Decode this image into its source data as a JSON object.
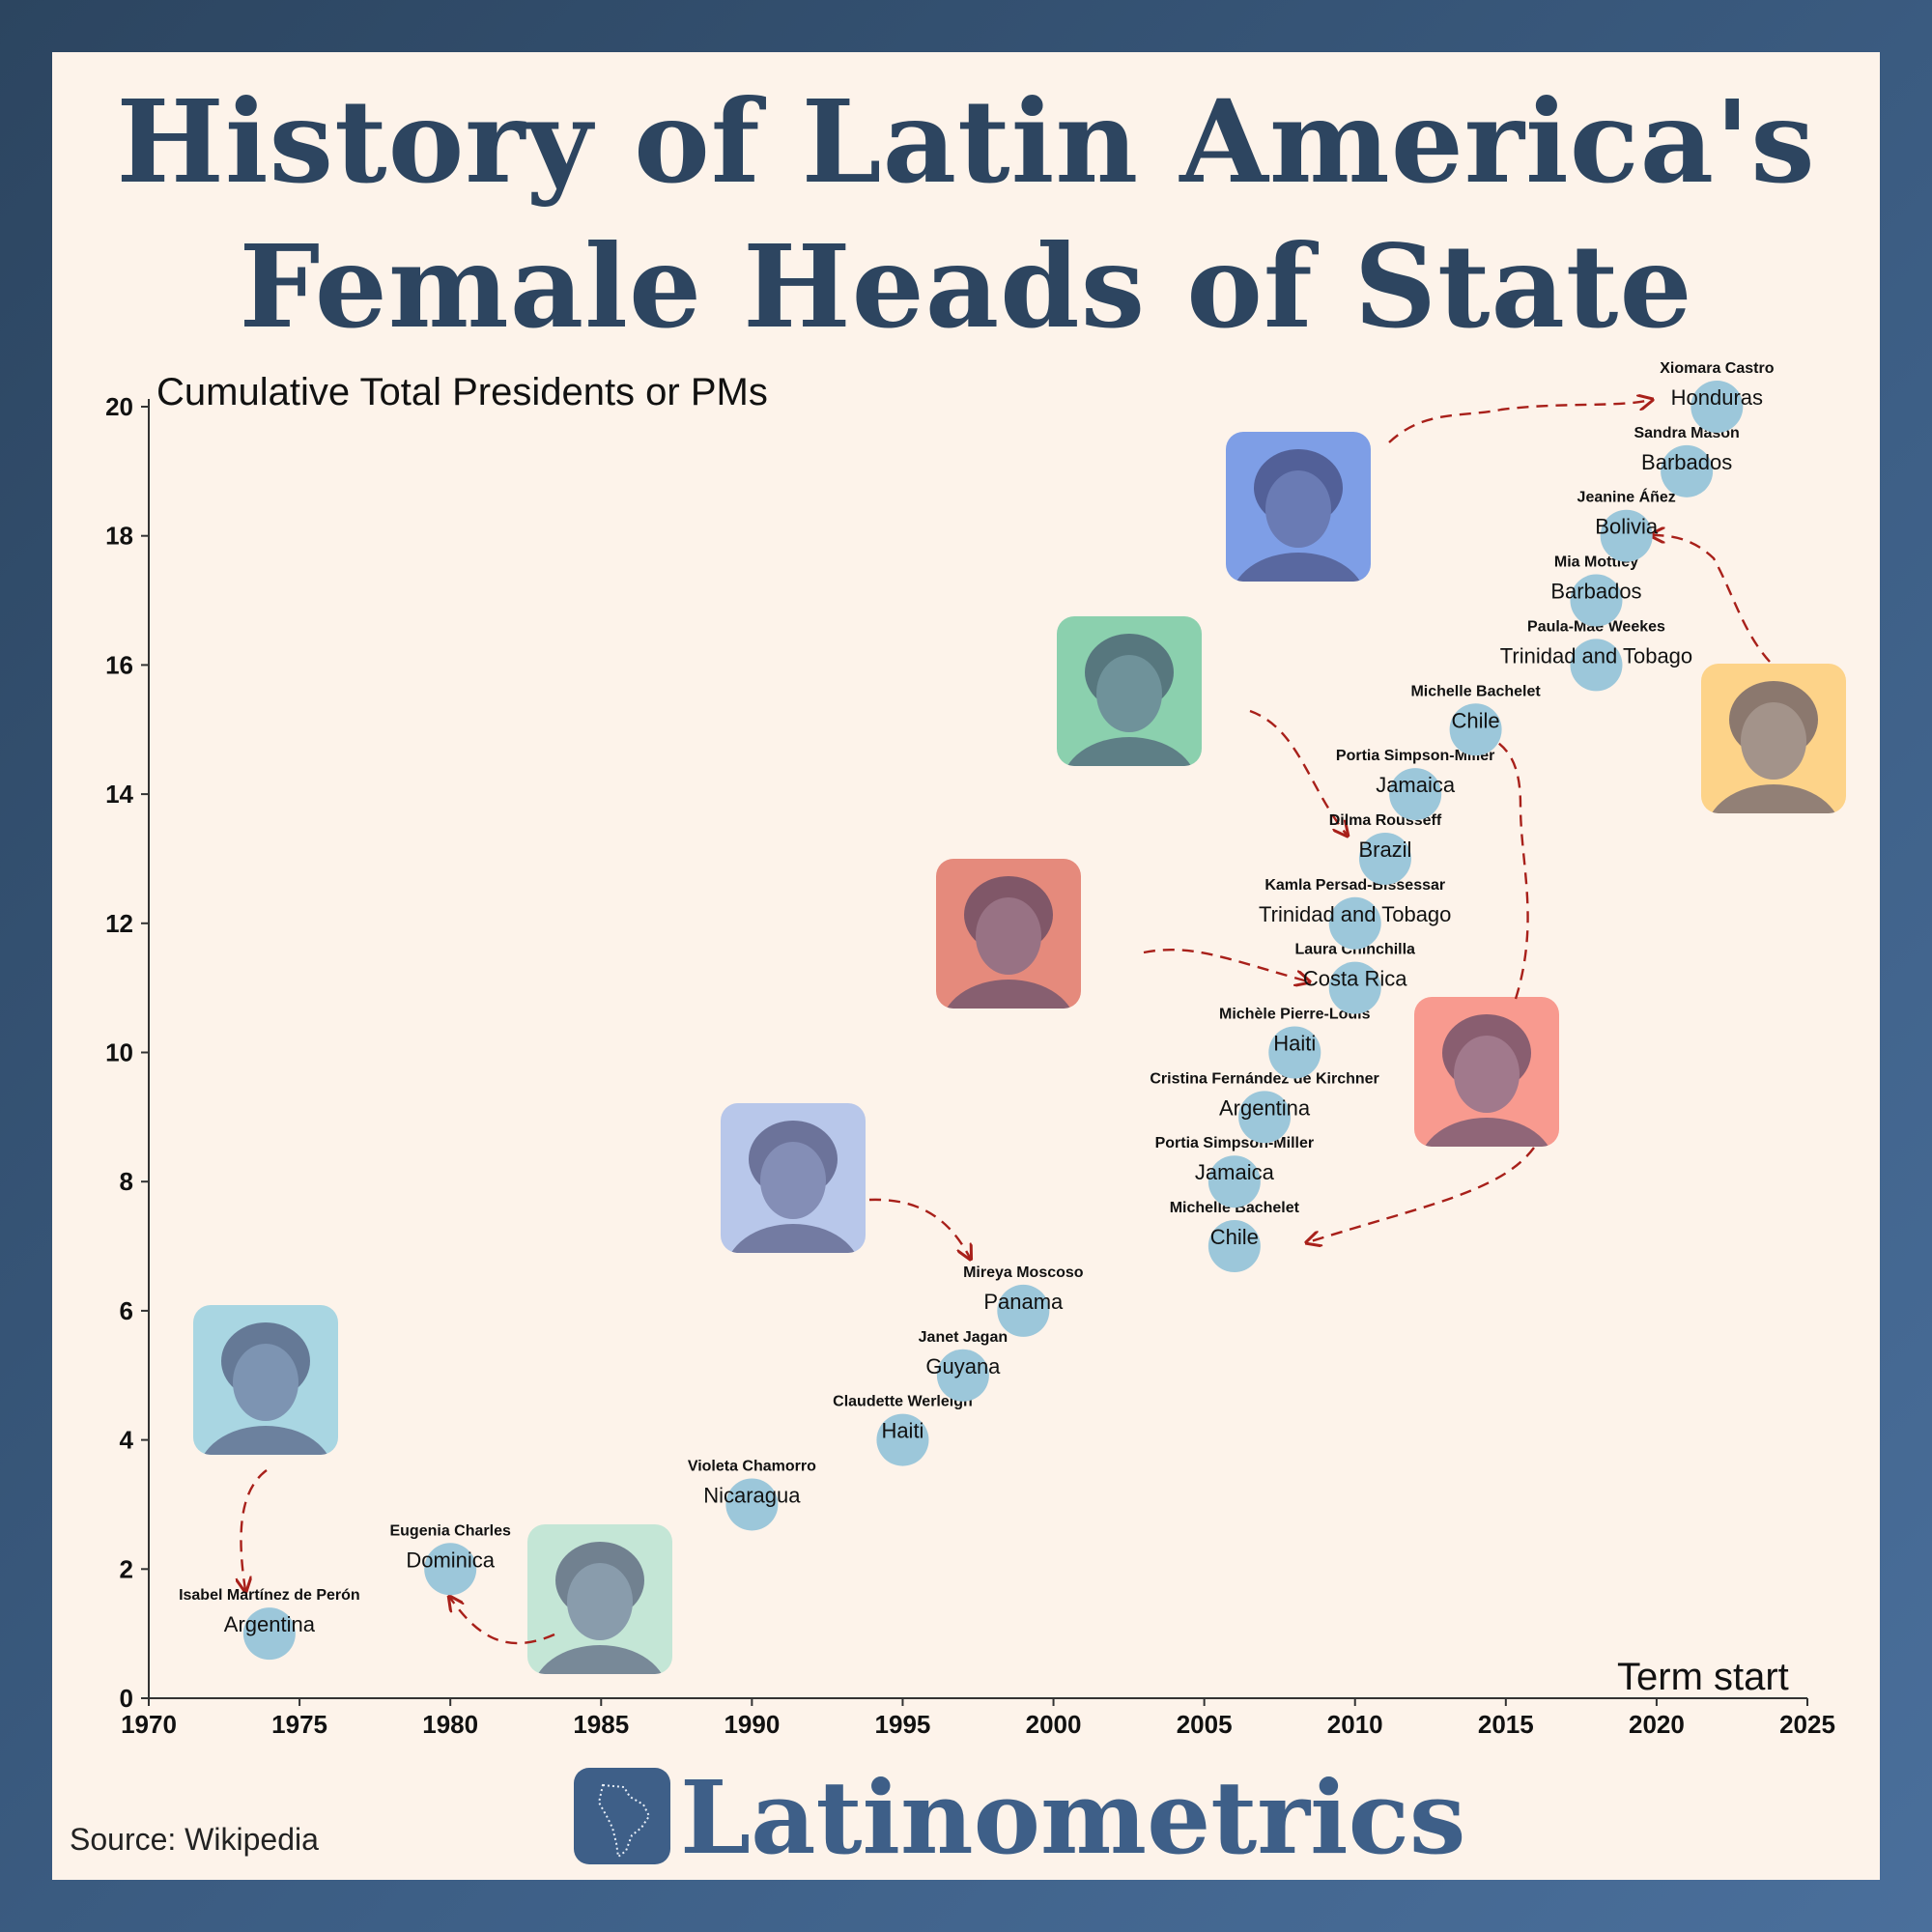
{
  "title_line1": "History of Latin America's",
  "title_line2": "Female Heads of State",
  "source": "Source: Wikipedia",
  "logo_text": "Latinometrics",
  "colors": {
    "title": "#2d4560",
    "dot": "#9cc7da",
    "arrow": "#a8201a",
    "logo": "#3e5f88",
    "photo_tints": [
      "#a9d6e2",
      "#c4e6d6",
      "#b8c7ea",
      "#e58a7c",
      "#8bd0ae",
      "#7e9ee6",
      "#f89a8f",
      "#fdd389"
    ]
  },
  "photo_icons": [
    "portrait-icon-peron",
    "portrait-icon-charles",
    "portrait-icon-moscoso",
    "portrait-icon-chinchilla",
    "portrait-icon-rousseff",
    "portrait-icon-castro",
    "portrait-icon-bachelet",
    "portrait-icon-anez"
  ],
  "chart_data": {
    "type": "scatter",
    "title": "History of Latin America's Female Heads of State",
    "xlabel": "Term start",
    "ylabel": "Cumulative Total Presidents or PMs",
    "xlim": [
      1970,
      2025
    ],
    "ylim": [
      0,
      20
    ],
    "xticks": [
      "1970",
      "1975",
      "1980",
      "1985",
      "1990",
      "1995",
      "2000",
      "2005",
      "2010",
      "2015",
      "2020",
      "2025"
    ],
    "yticks": [
      "0",
      "2",
      "4",
      "6",
      "8",
      "10",
      "12",
      "14",
      "16",
      "18",
      "20"
    ],
    "grid": false,
    "points": [
      {
        "x": 1974,
        "y": 1,
        "name": "Isabel Martínez de Perón",
        "country": "Argentina"
      },
      {
        "x": 1980,
        "y": 2,
        "name": "Eugenia Charles",
        "country": "Dominica"
      },
      {
        "x": 1990,
        "y": 3,
        "name": "Violeta Chamorro",
        "country": "Nicaragua"
      },
      {
        "x": 1995,
        "y": 4,
        "name": "Claudette Werleigh",
        "country": "Haiti"
      },
      {
        "x": 1997,
        "y": 5,
        "name": "Janet Jagan",
        "country": "Guyana"
      },
      {
        "x": 1999,
        "y": 6,
        "name": "Mireya Moscoso",
        "country": "Panama"
      },
      {
        "x": 2006,
        "y": 7,
        "name": "Michelle Bachelet",
        "country": "Chile"
      },
      {
        "x": 2006,
        "y": 8,
        "name": "Portia Simpson-Miller",
        "country": "Jamaica"
      },
      {
        "x": 2007,
        "y": 9,
        "name": "Cristina Fernández de Kirchner",
        "country": "Argentina"
      },
      {
        "x": 2008,
        "y": 10,
        "name": "Michèle Pierre-Louis",
        "country": "Haiti"
      },
      {
        "x": 2010,
        "y": 11,
        "name": "Laura Chinchilla",
        "country": "Costa Rica"
      },
      {
        "x": 2010,
        "y": 12,
        "name": "Kamla Persad-Bissessar",
        "country": "Trinidad and Tobago"
      },
      {
        "x": 2011,
        "y": 13,
        "name": "Dilma Rousseff",
        "country": "Brazil"
      },
      {
        "x": 2012,
        "y": 14,
        "name": "Portia Simpson-Miller",
        "country": "Jamaica"
      },
      {
        "x": 2014,
        "y": 15,
        "name": "Michelle Bachelet",
        "country": "Chile"
      },
      {
        "x": 2018,
        "y": 16,
        "name": "Paula-Mae Weekes",
        "country": "Trinidad and Tobago"
      },
      {
        "x": 2018,
        "y": 17,
        "name": "Mia Mottley",
        "country": "Barbados"
      },
      {
        "x": 2019,
        "y": 18,
        "name": "Jeanine Áñez",
        "country": "Bolivia"
      },
      {
        "x": 2021,
        "y": 19,
        "name": "Sandra Mason",
        "country": "Barbados"
      },
      {
        "x": 2022,
        "y": 20,
        "name": "Xiomara Castro",
        "country": "Honduras"
      }
    ]
  }
}
